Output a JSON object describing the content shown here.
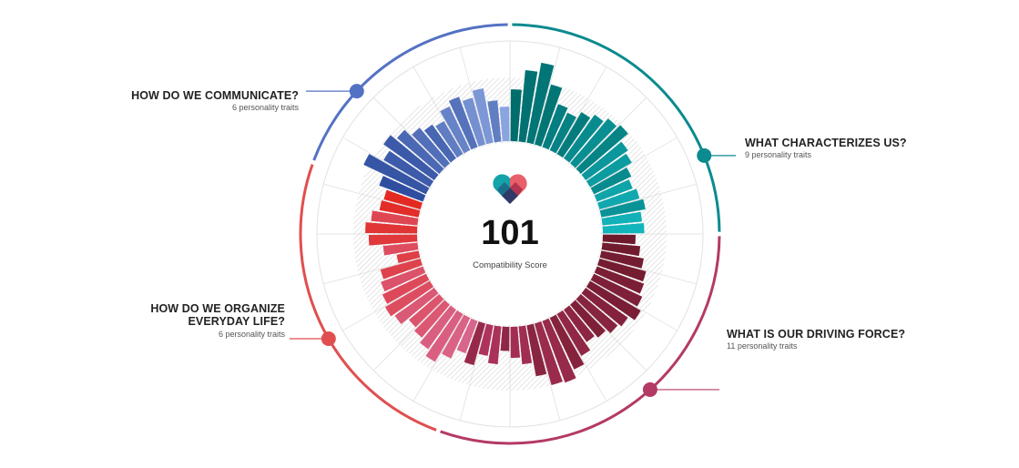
{
  "center": {
    "score": "101",
    "caption": "Compatibility Score",
    "logo_icon": "heart-logo-icon"
  },
  "sections": {
    "communicate": {
      "title": "HOW DO WE COMMUNICATE?",
      "subtitle": "6 personality traits",
      "color": "#5472c4"
    },
    "characterizes": {
      "title": "WHAT CHARACTERIZES US?",
      "subtitle": "9 personality traits",
      "color": "#0b8a8f"
    },
    "driving": {
      "title": "WHAT IS OUR DRIVING FORCE?",
      "subtitle": "11 personality traits",
      "color": "#b43a66"
    },
    "organize": {
      "title_line1": "HOW DO WE ORGANIZE",
      "title_line2": "EVERYDAY LIFE?",
      "subtitle": "6 personality traits",
      "color": "#e04f4f"
    }
  },
  "chart_data": {
    "type": "radial-bar",
    "ylim": [
      0,
      1
    ],
    "segments": [
      {
        "name": "WHAT CHARACTERIZES US?",
        "colors": [
          "#006d6d",
          "#13b5bc"
        ],
        "values": [
          0.62,
          0.85,
          0.96,
          0.74,
          0.55,
          0.5,
          0.58,
          0.64,
          0.7,
          0.74,
          0.62,
          0.58,
          0.5,
          0.46,
          0.5,
          0.54,
          0.48,
          0.5
        ]
      },
      {
        "name": "WHAT IS OUR DRIVING FORCE?",
        "colors": [
          "#6e1a2c",
          "#b0335e"
        ],
        "values": [
          0.4,
          0.46,
          0.52,
          0.58,
          0.6,
          0.64,
          0.7,
          0.62,
          0.58,
          0.52,
          0.48,
          0.58,
          0.68,
          0.78,
          0.76,
          0.62,
          0.46,
          0.38,
          0.3,
          0.46,
          0.38,
          0.52
        ]
      },
      {
        "name": "HOW DO WE ORGANIZE EVERYDAY LIFE?",
        "colors": [
          "#d8658b",
          "#e32a22"
        ],
        "values": [
          0.42,
          0.54,
          0.66,
          0.58,
          0.52,
          0.48,
          0.58,
          0.62,
          0.58,
          0.54,
          0.5,
          0.28,
          0.42,
          0.58,
          0.62,
          0.56,
          0.48,
          0.46
        ]
      },
      {
        "name": "HOW DO WE COMMUNICATE?",
        "colors": [
          "#2f4ea0",
          "#8aa4e0"
        ],
        "values": [
          0.56,
          0.82,
          0.64,
          0.74,
          0.66,
          0.56,
          0.5,
          0.46,
          0.58,
          0.64,
          0.58,
          0.66,
          0.5,
          0.42
        ]
      }
    ]
  }
}
